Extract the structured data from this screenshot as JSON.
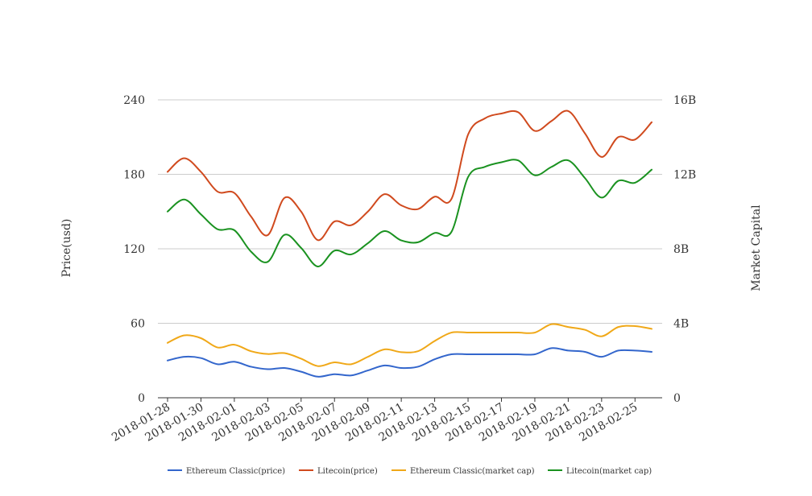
{
  "chart_data": {
    "type": "line",
    "categories": [
      "2018-01-28",
      "2018-01-29",
      "2018-01-30",
      "2018-01-31",
      "2018-02-01",
      "2018-02-02",
      "2018-02-03",
      "2018-02-04",
      "2018-02-05",
      "2018-02-06",
      "2018-02-07",
      "2018-02-08",
      "2018-02-09",
      "2018-02-10",
      "2018-02-11",
      "2018-02-12",
      "2018-02-13",
      "2018-02-14",
      "2018-02-15",
      "2018-02-16",
      "2018-02-17",
      "2018-02-18",
      "2018-02-19",
      "2018-02-20",
      "2018-02-21",
      "2018-02-22",
      "2018-02-23",
      "2018-02-24",
      "2018-02-25",
      "2018-02-26"
    ],
    "x_tick_labels": [
      "2018-01-28",
      "2018-01-30",
      "2018-02-01",
      "2018-02-03",
      "2018-02-05",
      "2018-02-07",
      "2018-02-09",
      "2018-02-11",
      "2018-02-13",
      "2018-02-15",
      "2018-02-17",
      "2018-02-19",
      "2018-02-21",
      "2018-02-23",
      "2018-02-25"
    ],
    "ylabel_left": "Price(usd)",
    "ylabel_right": "Market Capital",
    "ylim_left": [
      0,
      240
    ],
    "ylim_right": [
      0,
      16
    ],
    "y_ticks_left": [
      "0",
      "60",
      "120",
      "180",
      "240"
    ],
    "y_ticks_right": [
      "0",
      "4B",
      "8B",
      "12B",
      "16B"
    ],
    "grid": true,
    "legend_position": "bottom",
    "series": [
      {
        "name": "Ethereum Classic(price)",
        "axis": "left",
        "color": "#3366cc",
        "values": [
          30,
          33,
          32,
          27,
          29,
          25,
          23,
          24,
          21,
          17,
          19,
          18,
          22,
          26,
          24,
          25,
          31,
          35,
          35,
          35,
          35,
          35,
          35,
          40,
          38,
          37,
          33,
          38,
          38,
          37
        ]
      },
      {
        "name": "Litecoin(price)",
        "axis": "left",
        "color": "#d04a1e",
        "values": [
          182,
          193,
          182,
          166,
          165,
          146,
          131,
          161,
          150,
          127,
          142,
          139,
          150,
          164,
          155,
          152,
          162,
          160,
          212,
          225,
          229,
          230,
          215,
          223,
          231,
          213,
          194,
          210,
          208,
          222
        ]
      },
      {
        "name": "Ethereum Classic(market cap)",
        "axis": "right",
        "color": "#f0a818",
        "values": [
          2.95,
          3.35,
          3.2,
          2.7,
          2.85,
          2.5,
          2.35,
          2.4,
          2.1,
          1.7,
          1.9,
          1.8,
          2.2,
          2.6,
          2.45,
          2.5,
          3.05,
          3.5,
          3.5,
          3.5,
          3.5,
          3.5,
          3.5,
          3.95,
          3.8,
          3.65,
          3.3,
          3.8,
          3.85,
          3.7
        ]
      },
      {
        "name": "Litecoin(market cap)",
        "axis": "right",
        "color": "#1a9220",
        "values": [
          10.0,
          10.65,
          9.85,
          9.05,
          9.0,
          7.85,
          7.3,
          8.75,
          8.05,
          7.05,
          7.9,
          7.7,
          8.3,
          8.95,
          8.45,
          8.35,
          8.85,
          8.9,
          11.85,
          12.4,
          12.65,
          12.75,
          11.95,
          12.4,
          12.75,
          11.8,
          10.75,
          11.65,
          11.55,
          12.25
        ]
      }
    ]
  }
}
